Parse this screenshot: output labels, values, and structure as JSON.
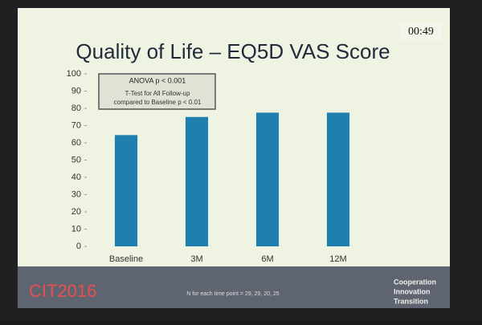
{
  "chart_data": {
    "type": "bar",
    "title": "Quality of Life – EQ5D VAS Score",
    "categories": [
      "Baseline",
      "3M",
      "6M",
      "12M"
    ],
    "values": [
      64.5,
      75,
      77.5,
      77.5
    ],
    "color": "#1f7fae",
    "ylim": [
      0,
      100
    ],
    "yticks": [
      0,
      10,
      20,
      30,
      40,
      50,
      60,
      70,
      80,
      90,
      100
    ],
    "grid": false,
    "annotations": [
      "ANOVA p < 0.001",
      "T-Test for All Follow-up",
      "compared to Baseline p < 0.01"
    ]
  },
  "timer": "00:49",
  "footer": {
    "logo": "CIT2016",
    "note": "N for each time point = 29, 29, 20, 25",
    "tagline": [
      "Cooperation",
      "Innovation",
      "Transition"
    ]
  }
}
